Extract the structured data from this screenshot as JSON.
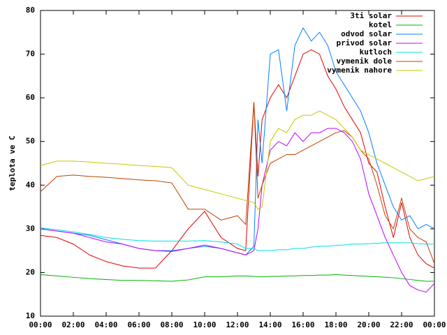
{
  "chart_data": {
    "type": "line",
    "ylabel": "teplota ve C",
    "x": [
      0,
      1,
      2,
      3,
      4,
      5,
      6,
      7,
      8,
      9,
      10,
      11,
      12,
      12.5,
      13,
      13.25,
      13.5,
      14,
      14.5,
      15,
      15.5,
      16,
      16.5,
      17,
      17.5,
      18,
      18.5,
      19,
      19.5,
      20,
      20.5,
      21,
      21.5,
      22,
      22.5,
      23,
      23.5,
      24
    ],
    "xlim": [
      0,
      24
    ],
    "xticks": [
      {
        "value": 0,
        "label": "00:00"
      },
      {
        "value": 2,
        "label": "02:00"
      },
      {
        "value": 4,
        "label": "04:00"
      },
      {
        "value": 6,
        "label": "06:00"
      },
      {
        "value": 8,
        "label": "08:00"
      },
      {
        "value": 10,
        "label": "10:00"
      },
      {
        "value": 12,
        "label": "12:00"
      },
      {
        "value": 14,
        "label": "14:00"
      },
      {
        "value": 16,
        "label": "16:00"
      },
      {
        "value": 18,
        "label": "18:00"
      },
      {
        "value": 20,
        "label": "20:00"
      },
      {
        "value": 22,
        "label": "22:00"
      },
      {
        "value": 24,
        "label": "00:00"
      }
    ],
    "ylim": [
      10,
      80
    ],
    "yticks": [
      10,
      20,
      30,
      40,
      50,
      60,
      70,
      80
    ],
    "legend": "top right",
    "series": [
      {
        "name": "3ti solar",
        "color": "#e00000",
        "values": [
          28.5,
          28,
          26.5,
          24,
          22.5,
          21.5,
          21,
          21,
          25,
          30,
          34,
          28,
          25.5,
          25,
          59,
          42,
          55,
          60,
          63,
          60,
          65,
          70,
          71,
          70,
          65,
          62,
          58,
          55,
          52,
          45,
          43,
          35,
          28,
          36,
          28,
          24,
          22,
          21
        ]
      },
      {
        "name": "kotel",
        "color": "#00b000",
        "values": [
          19.5,
          19.2,
          18.9,
          18.6,
          18.4,
          18.2,
          18.2,
          18.1,
          18,
          18.3,
          19,
          19,
          19.2,
          19.2,
          19.1,
          19,
          19,
          19.1,
          19.1,
          19.2,
          19.2,
          19.3,
          19.3,
          19.4,
          19.4,
          19.5,
          19.4,
          19.3,
          19.2,
          19.1,
          19,
          18.9,
          18.8,
          18.6,
          18.4,
          18.2,
          18,
          18
        ]
      },
      {
        "name": "odvod solar",
        "color": "#0080ff",
        "values": [
          30,
          29.5,
          29,
          28.5,
          27.5,
          26.5,
          25.5,
          25,
          25,
          25.5,
          26,
          25.5,
          24.5,
          24,
          26,
          55,
          45,
          70,
          71,
          57,
          72,
          76,
          73,
          75,
          72,
          66,
          63,
          60,
          57,
          52,
          45,
          40,
          35,
          32,
          33,
          30,
          31,
          30
        ]
      },
      {
        "name": "privod solar",
        "color": "#c000ff",
        "values": [
          30,
          29.5,
          29,
          28,
          27,
          26.5,
          25.5,
          25,
          24.8,
          25.5,
          26.3,
          25.5,
          24.5,
          24,
          25,
          30,
          40,
          48,
          50,
          49,
          52,
          50,
          52,
          52,
          53,
          53,
          52,
          50,
          46,
          38,
          33,
          28,
          24,
          20,
          17,
          16,
          15.5,
          17.5
        ]
      },
      {
        "name": "kutloch",
        "color": "#00e0e0",
        "values": [
          30.2,
          29.8,
          29.3,
          28.7,
          28,
          27.6,
          27.3,
          27.2,
          27.2,
          27.2,
          27.3,
          27,
          26.5,
          25.5,
          25.5,
          25,
          25,
          25,
          25.2,
          25.2,
          25.5,
          25.5,
          25.8,
          26,
          26,
          26.2,
          26.3,
          26.5,
          26.5,
          26.6,
          26.7,
          26.8,
          26.8,
          26.8,
          26.8,
          26.6,
          26.5,
          26.5
        ]
      },
      {
        "name": "vymenik dole",
        "color": "#c04000",
        "values": [
          38.5,
          42,
          42.3,
          42,
          41.8,
          41.5,
          41.2,
          41,
          40.5,
          34.5,
          34.5,
          32,
          33,
          31,
          59,
          37,
          40,
          45,
          46,
          47,
          47,
          48,
          49,
          50,
          51,
          52,
          52.5,
          51,
          48,
          46,
          40,
          33,
          30,
          37,
          30,
          28,
          27,
          22
        ]
      },
      {
        "name": "vymenik nahore",
        "color": "#c8c800",
        "values": [
          44.5,
          45.5,
          45.5,
          45.3,
          45,
          44.8,
          44.5,
          44.3,
          44,
          40,
          39,
          38,
          37,
          36.5,
          36,
          34.5,
          35,
          50,
          53,
          52,
          55,
          56,
          56,
          57,
          56,
          55,
          53,
          51,
          48,
          47,
          46,
          45,
          44,
          43,
          42,
          41,
          41.5,
          42
        ]
      }
    ]
  }
}
